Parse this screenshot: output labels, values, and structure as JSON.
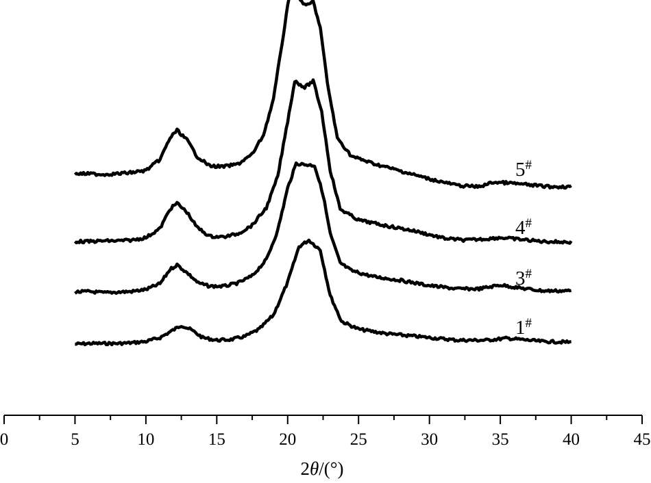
{
  "chart_data": {
    "type": "line",
    "title": "",
    "xlabel": {
      "prefix": "2",
      "symbol": "θ",
      "suffix": "/(°)"
    },
    "ylabel": "",
    "xlim": [
      0,
      45
    ],
    "xticks": [
      0,
      5,
      10,
      15,
      20,
      25,
      30,
      35,
      40,
      45
    ],
    "xtick_labels": [
      "0",
      "5",
      "10",
      "15",
      "20",
      "25",
      "30",
      "35",
      "40",
      "45"
    ],
    "y_axis": "none (curves vertically offset for clarity)",
    "grid": false,
    "legend": "inline labels at right end of each curve",
    "line_color": "#000000",
    "series": [
      {
        "name": "1",
        "sup": "#",
        "points": [
          [
            5,
            0
          ],
          [
            6,
            0.01
          ],
          [
            7,
            0.01
          ],
          [
            8,
            0.01
          ],
          [
            9,
            0.02
          ],
          [
            10,
            0.04
          ],
          [
            11,
            0.1
          ],
          [
            11.8,
            0.2
          ],
          [
            12.5,
            0.29
          ],
          [
            13.2,
            0.22
          ],
          [
            14,
            0.1
          ],
          [
            15,
            0.06
          ],
          [
            16,
            0.07
          ],
          [
            17,
            0.12
          ],
          [
            18,
            0.23
          ],
          [
            19,
            0.45
          ],
          [
            20,
            0.95
          ],
          [
            20.8,
            1.5
          ],
          [
            21.5,
            1.6
          ],
          [
            22.3,
            1.45
          ],
          [
            23,
            0.75
          ],
          [
            23.8,
            0.35
          ],
          [
            25,
            0.23
          ],
          [
            27,
            0.16
          ],
          [
            30,
            0.1
          ],
          [
            32,
            0.06
          ],
          [
            34,
            0.06
          ],
          [
            35.5,
            0.09
          ],
          [
            37,
            0.06
          ],
          [
            38,
            0.04
          ],
          [
            40,
            0.03
          ]
        ]
      },
      {
        "name": "3",
        "sup": "#",
        "points": [
          [
            5,
            0
          ],
          [
            6,
            0.01
          ],
          [
            7,
            -0.01
          ],
          [
            8,
            0.0
          ],
          [
            9,
            0.01
          ],
          [
            10,
            0.04
          ],
          [
            11,
            0.13
          ],
          [
            11.7,
            0.35
          ],
          [
            12.2,
            0.42
          ],
          [
            13,
            0.28
          ],
          [
            13.7,
            0.14
          ],
          [
            14.5,
            0.09
          ],
          [
            15.5,
            0.09
          ],
          [
            16.5,
            0.14
          ],
          [
            17.5,
            0.25
          ],
          [
            18.5,
            0.5
          ],
          [
            19.3,
            0.95
          ],
          [
            20,
            1.6
          ],
          [
            20.6,
            1.98
          ],
          [
            21.3,
            1.96
          ],
          [
            21.9,
            1.95
          ],
          [
            22.5,
            1.5
          ],
          [
            23,
            0.9
          ],
          [
            23.7,
            0.45
          ],
          [
            24.5,
            0.33
          ],
          [
            26,
            0.24
          ],
          [
            28,
            0.18
          ],
          [
            30,
            0.1
          ],
          [
            32,
            0.05
          ],
          [
            33.5,
            0.05
          ],
          [
            35,
            0.11
          ],
          [
            36.5,
            0.06
          ],
          [
            38,
            0.02
          ],
          [
            40,
            0.02
          ]
        ]
      },
      {
        "name": "4",
        "sup": "#",
        "points": [
          [
            5,
            0
          ],
          [
            6,
            0.0
          ],
          [
            7,
            0.01
          ],
          [
            8,
            0.01
          ],
          [
            9,
            0.02
          ],
          [
            10,
            0.06
          ],
          [
            11,
            0.2
          ],
          [
            11.7,
            0.5
          ],
          [
            12.2,
            0.59
          ],
          [
            12.9,
            0.45
          ],
          [
            13.6,
            0.22
          ],
          [
            14.5,
            0.08
          ],
          [
            15.5,
            0.07
          ],
          [
            16.5,
            0.12
          ],
          [
            17.5,
            0.25
          ],
          [
            18.5,
            0.52
          ],
          [
            19.3,
            1.0
          ],
          [
            20,
            1.85
          ],
          [
            20.5,
            2.47
          ],
          [
            21.2,
            2.37
          ],
          [
            21.8,
            2.47
          ],
          [
            22.4,
            2.0
          ],
          [
            23,
            1.1
          ],
          [
            23.7,
            0.5
          ],
          [
            25,
            0.33
          ],
          [
            27,
            0.24
          ],
          [
            29,
            0.16
          ],
          [
            31,
            0.05
          ],
          [
            32.5,
            0.02
          ],
          [
            34,
            0.04
          ],
          [
            35,
            0.06
          ],
          [
            36.5,
            0.03
          ],
          [
            38,
            0.0
          ],
          [
            40,
            -0.01
          ]
        ]
      },
      {
        "name": "5",
        "sup": "#",
        "points": [
          [
            5,
            0
          ],
          [
            6,
            0.0
          ],
          [
            7,
            -0.01
          ],
          [
            8,
            0.0
          ],
          [
            9,
            0.02
          ],
          [
            10,
            0.05
          ],
          [
            11,
            0.22
          ],
          [
            11.7,
            0.55
          ],
          [
            12.2,
            0.67
          ],
          [
            12.9,
            0.52
          ],
          [
            13.6,
            0.27
          ],
          [
            14.5,
            0.12
          ],
          [
            15.5,
            0.11
          ],
          [
            16.5,
            0.15
          ],
          [
            17.5,
            0.3
          ],
          [
            18.3,
            0.6
          ],
          [
            19,
            1.15
          ],
          [
            19.6,
            2.0
          ],
          [
            20.1,
            2.72
          ],
          [
            20.6,
            2.75
          ],
          [
            21.3,
            2.58
          ],
          [
            21.8,
            2.65
          ],
          [
            22.3,
            2.25
          ],
          [
            22.8,
            1.4
          ],
          [
            23.5,
            0.55
          ],
          [
            24.5,
            0.27
          ],
          [
            26,
            0.16
          ],
          [
            28,
            0.04
          ],
          [
            30,
            -0.08
          ],
          [
            32,
            -0.18
          ],
          [
            33.5,
            -0.2
          ],
          [
            34.5,
            -0.13
          ],
          [
            35.5,
            -0.14
          ],
          [
            37,
            -0.17
          ],
          [
            38.5,
            -0.2
          ],
          [
            40,
            -0.2
          ]
        ]
      }
    ]
  }
}
